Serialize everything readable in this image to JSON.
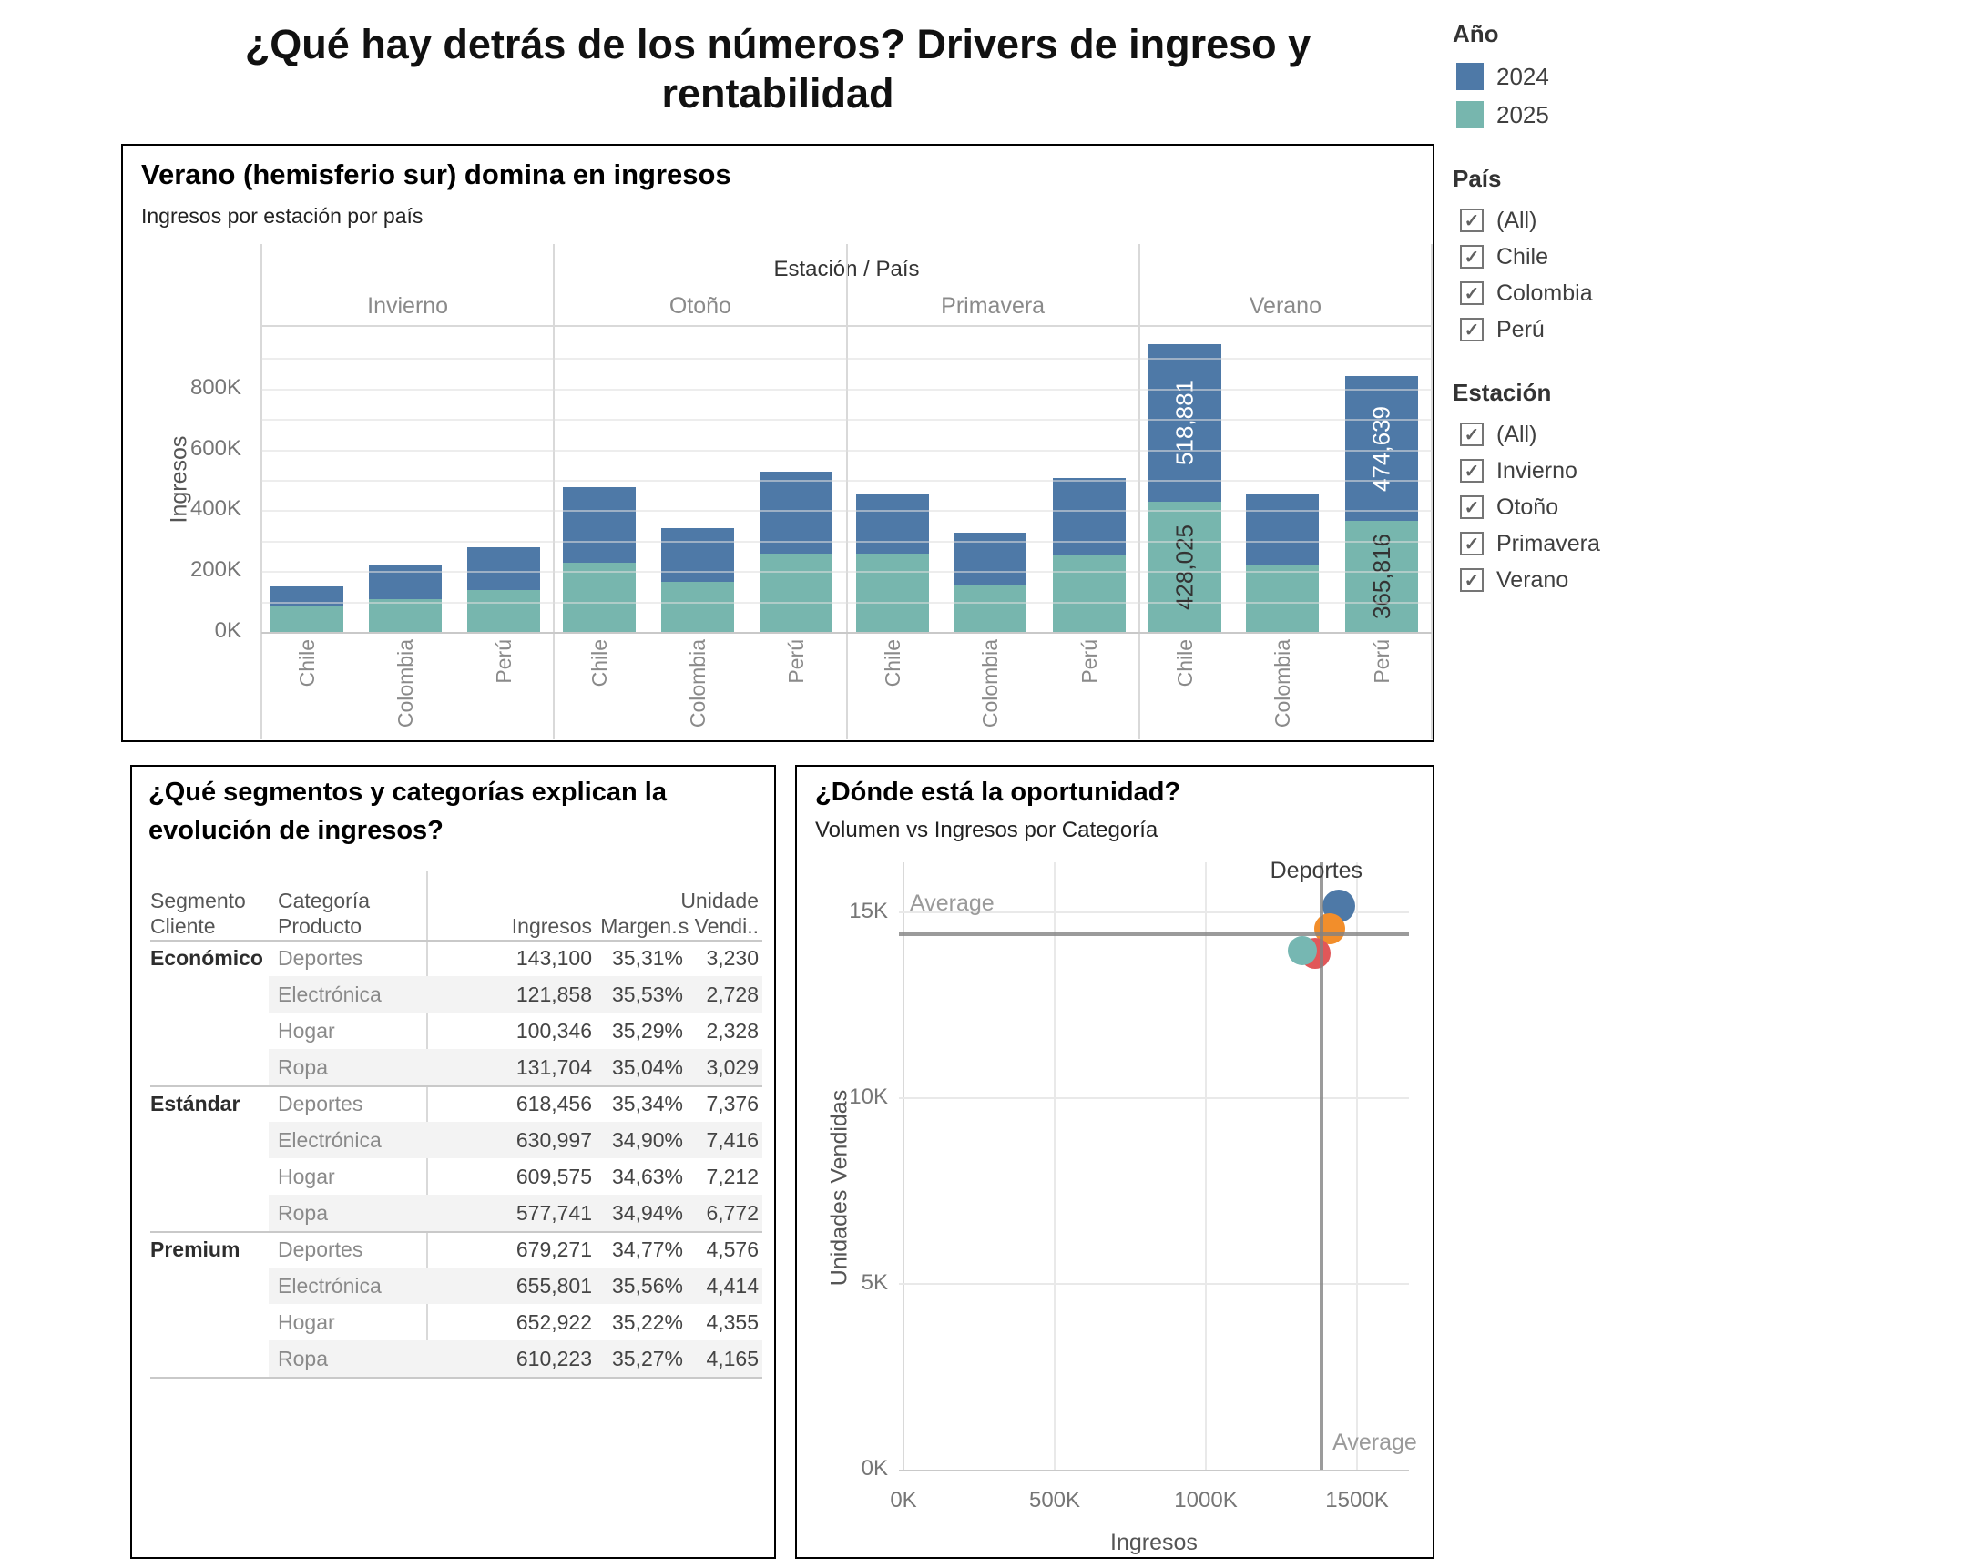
{
  "title_lines": [
    "¿Qué hay detrás de los números? Drivers de ingreso y",
    "rentabilidad"
  ],
  "sidebar": {
    "legend": {
      "title": "Año",
      "items": [
        {
          "label": "2024",
          "color": "#4e79a7"
        },
        {
          "label": "2025",
          "color": "#77b6ae"
        }
      ]
    },
    "filters": [
      {
        "title": "País",
        "options": [
          {
            "label": "(All)",
            "checked": true
          },
          {
            "label": "Chile",
            "checked": true
          },
          {
            "label": "Colombia",
            "checked": true
          },
          {
            "label": "Perú",
            "checked": true
          }
        ]
      },
      {
        "title": "Estación",
        "options": [
          {
            "label": "(All)",
            "checked": true
          },
          {
            "label": "Invierno",
            "checked": true
          },
          {
            "label": "Otoño",
            "checked": true
          },
          {
            "label": "Primavera",
            "checked": true
          },
          {
            "label": "Verano",
            "checked": true
          }
        ]
      }
    ]
  },
  "bar_panel": {
    "title": "Verano (hemisferio sur) domina en ingresos",
    "subtitle": "Ingresos por estación por país",
    "facet_label": "Estación / País",
    "ylabel": "Ingresos"
  },
  "table_panel": {
    "title_lines": [
      "¿Qué segmentos y categorías explican la",
      "evolución de ingresos?"
    ],
    "headers": {
      "segment": [
        "Segmento",
        "Cliente"
      ],
      "category": [
        "Categoría",
        "Producto"
      ],
      "ingresos": [
        "Ingresos"
      ],
      "margen": [
        "Margen.."
      ],
      "unidades": [
        "Unidade",
        "s Vendi.."
      ]
    },
    "groups": [
      {
        "segment": "Económico",
        "rows": [
          {
            "categoria": "Deportes",
            "ingresos": "143,100",
            "margen": "35,31%",
            "unidades": "3,230"
          },
          {
            "categoria": "Electrónica",
            "ingresos": "121,858",
            "margen": "35,53%",
            "unidades": "2,728"
          },
          {
            "categoria": "Hogar",
            "ingresos": "100,346",
            "margen": "35,29%",
            "unidades": "2,328"
          },
          {
            "categoria": "Ropa",
            "ingresos": "131,704",
            "margen": "35,04%",
            "unidades": "3,029"
          }
        ]
      },
      {
        "segment": "Estándar",
        "rows": [
          {
            "categoria": "Deportes",
            "ingresos": "618,456",
            "margen": "35,34%",
            "unidades": "7,376"
          },
          {
            "categoria": "Electrónica",
            "ingresos": "630,997",
            "margen": "34,90%",
            "unidades": "7,416"
          },
          {
            "categoria": "Hogar",
            "ingresos": "609,575",
            "margen": "34,63%",
            "unidades": "7,212"
          },
          {
            "categoria": "Ropa",
            "ingresos": "577,741",
            "margen": "34,94%",
            "unidades": "6,772"
          }
        ]
      },
      {
        "segment": "Premium",
        "rows": [
          {
            "categoria": "Deportes",
            "ingresos": "679,271",
            "margen": "34,77%",
            "unidades": "4,576"
          },
          {
            "categoria": "Electrónica",
            "ingresos": "655,801",
            "margen": "35,56%",
            "unidades": "4,414"
          },
          {
            "categoria": "Hogar",
            "ingresos": "652,922",
            "margen": "35,22%",
            "unidades": "4,355"
          },
          {
            "categoria": "Ropa",
            "ingresos": "610,223",
            "margen": "35,27%",
            "unidades": "4,165"
          }
        ]
      }
    ]
  },
  "scatter_panel": {
    "title": "¿Dónde está la oportunidad?",
    "subtitle": "Volumen vs Ingresos por Categoría",
    "xlabel": "Ingresos",
    "ylabel": "Unidades Vendidas",
    "annotation": "Deportes",
    "average_label": "Average"
  },
  "chart_data": [
    {
      "type": "bar",
      "stacked": true,
      "title": "Verano (hemisferio sur) domina en ingresos",
      "subtitle": "Ingresos por estación por país",
      "facet_header": "Estación / País",
      "groups": [
        "Invierno",
        "Otoño",
        "Primavera",
        "Verano"
      ],
      "categories": [
        "Chile",
        "Colombia",
        "Perú"
      ],
      "ylabel": "Ingresos",
      "ylim": [
        0,
        1000000
      ],
      "yticks": [
        0,
        200000,
        400000,
        600000,
        800000
      ],
      "ytick_labels": [
        "0K",
        "200K",
        "400K",
        "600K",
        "800K"
      ],
      "grid_step": 100000,
      "series": [
        {
          "name": "2025",
          "color": "#77b6ae",
          "values": [
            [
              84000,
              108000,
              138000
            ],
            [
              228000,
              165000,
              258000
            ],
            [
              258000,
              156000,
              255000
            ],
            [
              428025,
              222000,
              365816
            ]
          ]
        },
        {
          "name": "2024",
          "color": "#4e79a7",
          "values": [
            [
              66000,
              114000,
              141000
            ],
            [
              247000,
              175000,
              270000
            ],
            [
              198000,
              170000,
              252000
            ],
            [
              518881,
              234000,
              474639
            ]
          ]
        }
      ],
      "bar_value_labels": [
        {
          "group": 3,
          "category": 0,
          "series": "2024",
          "text": "518,881",
          "color": "#ffffff"
        },
        {
          "group": 3,
          "category": 0,
          "series": "2025",
          "text": "428,025",
          "color": "#333333"
        },
        {
          "group": 3,
          "category": 2,
          "series": "2024",
          "text": "474,639",
          "color": "#ffffff"
        },
        {
          "group": 3,
          "category": 2,
          "series": "2025",
          "text": "365,816",
          "color": "#333333"
        }
      ]
    },
    {
      "type": "scatter",
      "title": "¿Dónde está la oportunidad?",
      "subtitle": "Volumen vs Ingresos por Categoría",
      "xlabel": "Ingresos",
      "ylabel": "Unidades Vendidas",
      "xlim": [
        0,
        1700000
      ],
      "ylim": [
        0,
        16500
      ],
      "xticks": [
        0,
        500000,
        1000000,
        1500000
      ],
      "xtick_labels": [
        "0K",
        "500K",
        "1000K",
        "1500K"
      ],
      "yticks": [
        0,
        5000,
        10000,
        15000
      ],
      "ytick_labels": [
        "0K",
        "5K",
        "10K",
        "15K"
      ],
      "average_x": 1382999,
      "average_y": 14400,
      "annotation": {
        "text": "Deportes",
        "point": "Deportes"
      },
      "points": [
        {
          "name": "Deportes",
          "x": 1440827,
          "y": 15182,
          "color": "#4e79a7",
          "r": 18
        },
        {
          "name": "Electrónica",
          "x": 1408656,
          "y": 14558,
          "color": "#f28e2b",
          "r": 17
        },
        {
          "name": "Hogar",
          "x": 1362843,
          "y": 13895,
          "color": "#e15759",
          "r": 17
        },
        {
          "name": "Ropa",
          "x": 1319668,
          "y": 13966,
          "color": "#76b7b2",
          "r": 16
        }
      ]
    }
  ]
}
